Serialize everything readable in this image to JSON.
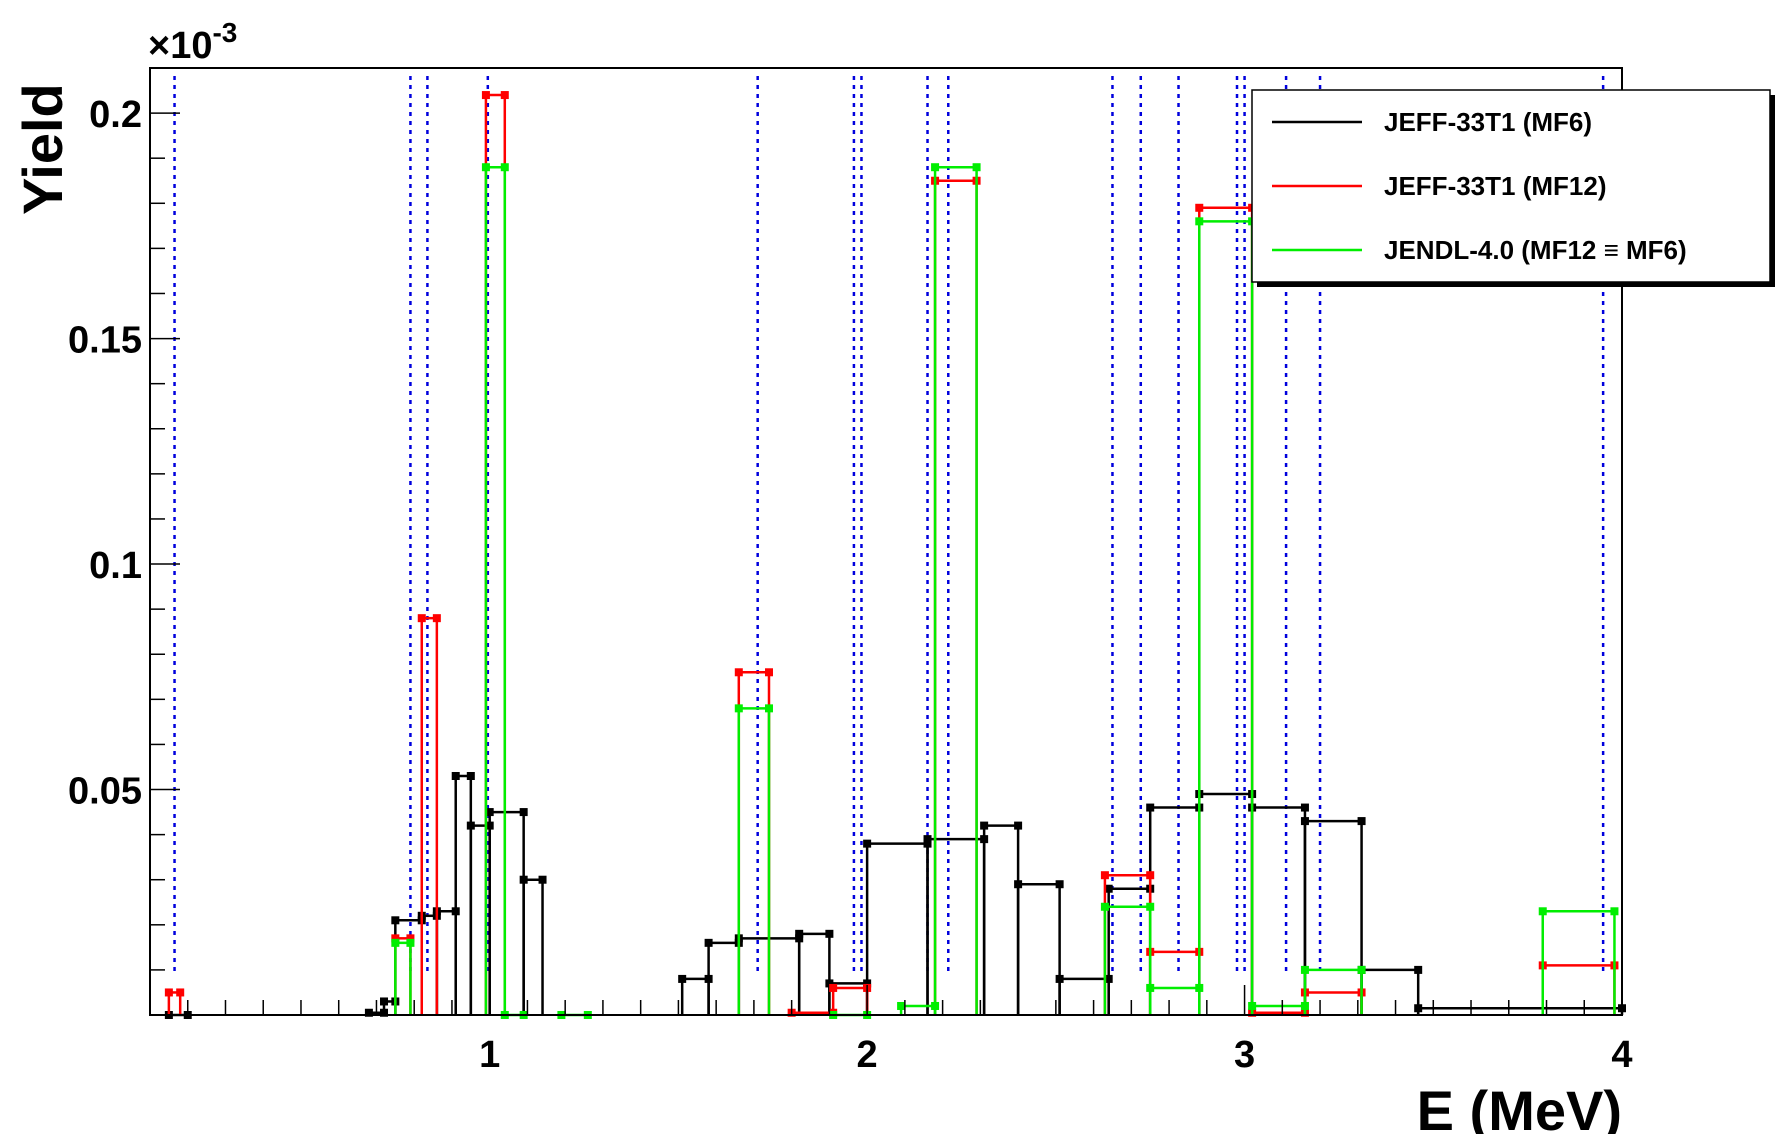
{
  "chart_data": {
    "type": "line",
    "xlabel": "E (MeV)",
    "ylabel": "Yield",
    "y_exponent_label": "×10",
    "y_exponent_power": "-3",
    "xlim": [
      0.1,
      4.0
    ],
    "ylim": [
      0.0,
      0.21
    ],
    "xticks": [
      {
        "v": 1,
        "label": "1"
      },
      {
        "v": 2,
        "label": "2"
      },
      {
        "v": 3,
        "label": "3"
      },
      {
        "v": 4,
        "label": "4"
      }
    ],
    "yticks": [
      {
        "v": 0.05,
        "label": "0.05"
      },
      {
        "v": 0.1,
        "label": "0.1"
      },
      {
        "v": 0.15,
        "label": "0.15"
      },
      {
        "v": 0.2,
        "label": "0.2"
      }
    ],
    "vertical_lines": [
      0.165,
      0.79,
      0.835,
      0.995,
      1.71,
      1.965,
      1.985,
      2.16,
      2.215,
      2.65,
      2.725,
      2.825,
      2.98,
      3.0,
      3.11,
      3.2,
      3.95
    ],
    "legend_position": "top-right",
    "series": [
      {
        "name": "JEFF-33T1 (MF6)",
        "color": "#000000",
        "bins": [
          [
            0.15,
            0.2,
            0.0
          ],
          [
            0.68,
            0.72,
            0.0005
          ],
          [
            0.72,
            0.75,
            0.003
          ],
          [
            0.75,
            0.82,
            0.021
          ],
          [
            0.82,
            0.86,
            0.022
          ],
          [
            0.86,
            0.91,
            0.023
          ],
          [
            0.91,
            0.95,
            0.053
          ],
          [
            0.95,
            1.0,
            0.042
          ],
          [
            1.0,
            1.09,
            0.045
          ],
          [
            1.09,
            1.14,
            0.03
          ],
          [
            1.51,
            1.58,
            0.008
          ],
          [
            1.58,
            1.66,
            0.016
          ],
          [
            1.66,
            1.82,
            0.017
          ],
          [
            1.82,
            1.9,
            0.018
          ],
          [
            1.9,
            2.0,
            0.007
          ],
          [
            2.0,
            2.16,
            0.038
          ],
          [
            2.16,
            2.31,
            0.039
          ],
          [
            2.31,
            2.4,
            0.042
          ],
          [
            2.4,
            2.51,
            0.029
          ],
          [
            2.51,
            2.64,
            0.008
          ],
          [
            2.64,
            2.75,
            0.028
          ],
          [
            2.75,
            2.88,
            0.046
          ],
          [
            2.88,
            3.02,
            0.049
          ],
          [
            3.02,
            3.16,
            0.046
          ],
          [
            3.16,
            3.31,
            0.043
          ],
          [
            3.31,
            3.46,
            0.01
          ],
          [
            3.46,
            4.0,
            0.0015
          ]
        ]
      },
      {
        "name": "JEFF-33T1 (MF12)",
        "color": "#ff0000",
        "bins": [
          [
            0.15,
            0.18,
            0.005
          ],
          [
            0.75,
            0.79,
            0.017
          ],
          [
            0.82,
            0.86,
            0.088
          ],
          [
            0.99,
            1.04,
            0.204
          ],
          [
            1.66,
            1.74,
            0.076
          ],
          [
            1.8,
            1.91,
            0.0005
          ],
          [
            1.91,
            2.0,
            0.006
          ],
          [
            2.18,
            2.29,
            0.185
          ],
          [
            2.63,
            2.75,
            0.031
          ],
          [
            2.75,
            2.88,
            0.014
          ],
          [
            2.88,
            3.02,
            0.179
          ],
          [
            3.02,
            3.16,
            0.0005
          ],
          [
            3.16,
            3.31,
            0.005
          ],
          [
            3.79,
            3.98,
            0.011
          ]
        ]
      },
      {
        "name": "JENDL-4.0 (MF12 ≡ MF6)",
        "color": "#00ee00",
        "bins": [
          [
            0.75,
            0.79,
            0.016
          ],
          [
            0.99,
            1.04,
            0.188
          ],
          [
            1.04,
            1.09,
            0.0
          ],
          [
            1.19,
            1.26,
            0.0
          ],
          [
            1.66,
            1.74,
            0.068
          ],
          [
            1.91,
            2.0,
            0.0
          ],
          [
            2.09,
            2.18,
            0.002
          ],
          [
            2.18,
            2.29,
            0.188
          ],
          [
            2.63,
            2.75,
            0.024
          ],
          [
            2.75,
            2.88,
            0.006
          ],
          [
            2.88,
            3.02,
            0.176
          ],
          [
            3.02,
            3.16,
            0.002
          ],
          [
            3.16,
            3.31,
            0.01
          ],
          [
            3.79,
            3.98,
            0.023
          ]
        ]
      }
    ]
  }
}
